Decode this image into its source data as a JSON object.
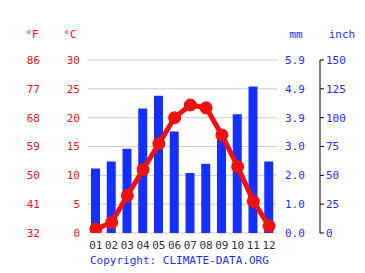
{
  "chart_data": {
    "type": "combo",
    "categories": [
      "01",
      "02",
      "03",
      "04",
      "05",
      "06",
      "07",
      "08",
      "09",
      "10",
      "11",
      "12"
    ],
    "series": [
      {
        "type": "bar",
        "color": "#1430ff",
        "axis": "y2",
        "values": [
          56,
          62,
          73,
          108,
          119,
          88,
          52,
          60,
          88,
          103,
          127,
          62
        ]
      },
      {
        "type": "line",
        "color": "#ee1111",
        "marker": "circle",
        "line_style": "solid",
        "values": [
          0.7,
          1.8,
          6.5,
          11,
          15.5,
          20,
          22.2,
          21.7,
          17,
          11.5,
          5.5,
          1.2
        ]
      }
    ],
    "ylabel": "°C",
    "ylim": [
      0,
      30
    ],
    "yticks": [
      0,
      5,
      10,
      15,
      20,
      25,
      30
    ],
    "yticks_alt": {
      "label": "°F",
      "ticks": [
        {
          "value": 0,
          "label": "32"
        },
        {
          "value": 5,
          "label": "41"
        },
        {
          "value": 10,
          "label": "50"
        },
        {
          "value": 15,
          "label": "59"
        },
        {
          "value": 20,
          "label": "68"
        },
        {
          "value": 25,
          "label": "77"
        },
        {
          "value": 30,
          "label": "86"
        }
      ]
    },
    "y2label": "mm",
    "y2lim": [
      0,
      150
    ],
    "y2ticks": [
      0,
      25,
      50,
      75,
      100,
      125,
      150
    ],
    "y2ticks_alt": {
      "label": "inch",
      "ticks": [
        {
          "value": 0,
          "label": "0.0"
        },
        {
          "value": 25,
          "label": "1.0"
        },
        {
          "value": 50,
          "label": "2.0"
        },
        {
          "value": 75,
          "label": "3.0"
        },
        {
          "value": 100,
          "label": "3.9"
        },
        {
          "value": 125,
          "label": "4.9"
        },
        {
          "value": 150,
          "label": "5.9"
        }
      ]
    },
    "grid": true,
    "annotation": "Copyright: CLIMATE-DATA.ORG"
  }
}
